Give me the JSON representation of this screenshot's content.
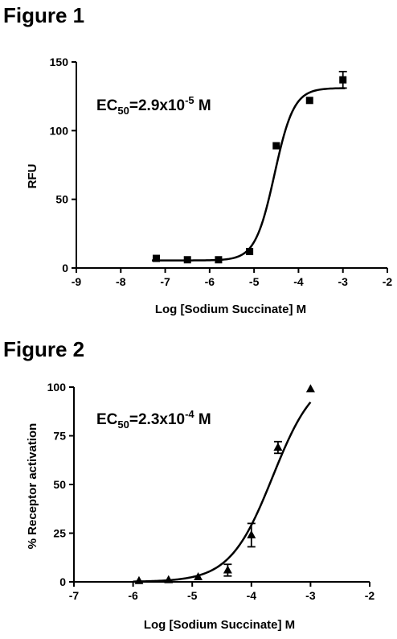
{
  "chart_data": [
    {
      "type": "scatter",
      "figure_title": "Figure 1",
      "annotation": {
        "prefix": "EC",
        "sub": "50",
        "mid": "=2.9x10",
        "sup": "-5",
        "suffix": " M"
      },
      "xlabel": "Log [Sodium Succinate] M",
      "ylabel": "RFU",
      "xlim": [
        -9,
        -2
      ],
      "ylim": [
        0,
        150
      ],
      "xticks": [
        "-9",
        "-8",
        "-7",
        "-6",
        "-5",
        "-4",
        "-3",
        "-2"
      ],
      "yticks": [
        "0",
        "50",
        "100",
        "150"
      ],
      "marker": "square",
      "series": [
        {
          "x": [
            -7.2,
            -6.5,
            -5.8,
            -5.1,
            -4.5,
            -3.75,
            -3.0
          ],
          "y": [
            7,
            6,
            6,
            12,
            89,
            122,
            137
          ],
          "err": [
            0,
            0,
            0,
            0,
            0,
            0,
            6
          ]
        }
      ],
      "fit": {
        "bottom": 5.5,
        "top": 131,
        "log_ec50": -4.54,
        "hill": 2.0,
        "x_range": [
          -7.3,
          -2.95
        ]
      }
    },
    {
      "type": "scatter",
      "figure_title": "Figure 2",
      "annotation": {
        "prefix": "EC",
        "sub": "50",
        "mid": "=2.3x10",
        "sup": "-4",
        "suffix": " M"
      },
      "xlabel": "Log [Sodium Succinate] M",
      "ylabel": "% Receptor activation",
      "xlim": [
        -7,
        -2
      ],
      "ylim": [
        0,
        100
      ],
      "xticks": [
        "-7",
        "-6",
        "-5",
        "-4",
        "-3",
        "-2"
      ],
      "yticks": [
        "0",
        "25",
        "50",
        "75",
        "100"
      ],
      "marker": "triangle",
      "series": [
        {
          "x": [
            -5.9,
            -5.4,
            -4.9,
            -4.4,
            -4.0,
            -3.55,
            -3.0
          ],
          "y": [
            0.5,
            1,
            2.5,
            6,
            24,
            69,
            99
          ],
          "err": [
            0,
            0,
            0,
            3,
            6,
            3,
            0
          ]
        }
      ],
      "fit": {
        "bottom": 0,
        "top": 108,
        "log_ec50": -3.64,
        "hill": 1.2,
        "x_range": [
          -6.0,
          -3.0
        ]
      }
    }
  ]
}
